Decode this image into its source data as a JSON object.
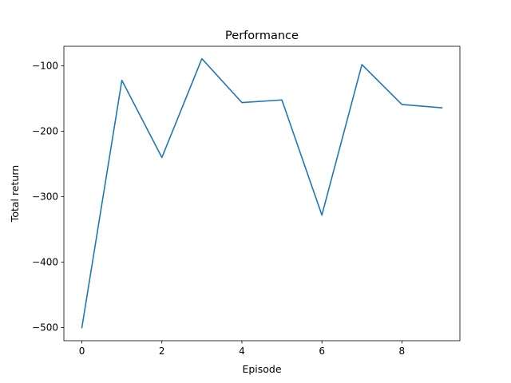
{
  "chart_data": {
    "type": "line",
    "title": "Performance",
    "xlabel": "Episode",
    "ylabel": "Total return",
    "xlim": [
      -0.45,
      9.45
    ],
    "ylim": [
      -520,
      -70
    ],
    "x_ticks": [
      0,
      2,
      4,
      6,
      8
    ],
    "y_ticks": [
      -500,
      -400,
      -300,
      -200,
      -100
    ],
    "x_tick_labels": [
      "0",
      "2",
      "4",
      "6",
      "8"
    ],
    "y_tick_labels": [
      "−500",
      "−400",
      "−300",
      "−200",
      "−100"
    ],
    "grid": false,
    "legend": "none",
    "series": [
      {
        "color": "#1f77b4",
        "x": [
          0,
          1,
          2,
          3,
          4,
          5,
          6,
          7,
          8,
          9
        ],
        "y": [
          -500,
          -122,
          -240,
          -89,
          -156,
          -152,
          -328,
          -98,
          -159,
          -164
        ]
      }
    ]
  }
}
